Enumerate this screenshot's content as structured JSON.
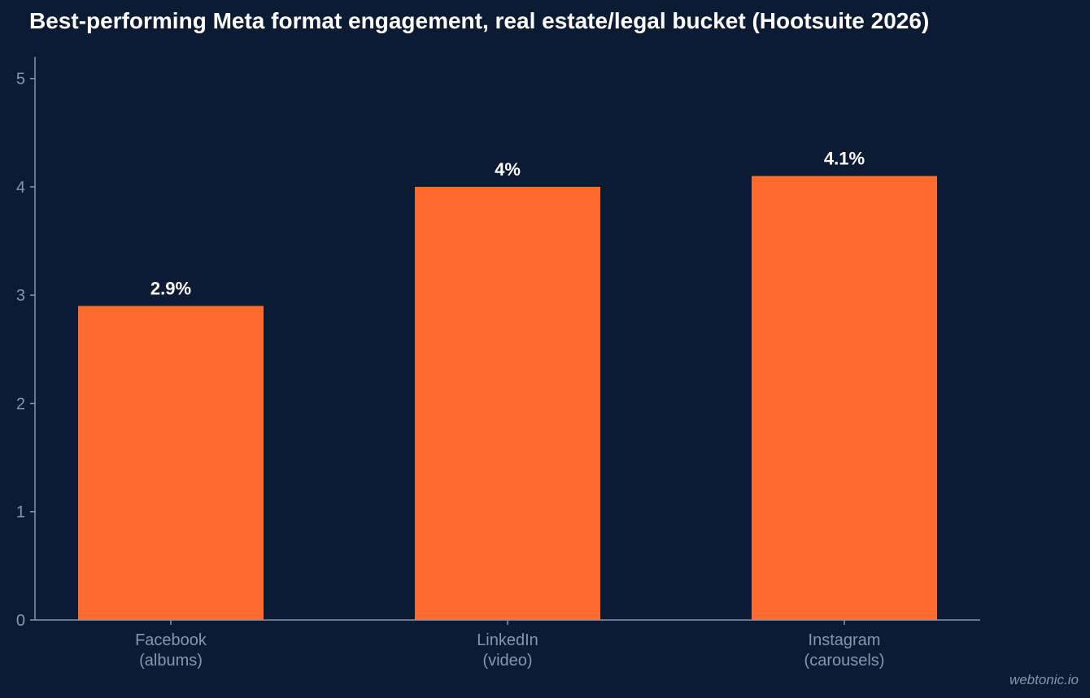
{
  "chart_data": {
    "type": "bar",
    "title": "Best-performing Meta format engagement, real estate/legal bucket (Hootsuite 2026)",
    "categories": [
      "Facebook\n(albums)",
      "LinkedIn\n(video)",
      "Instagram\n(carousels)"
    ],
    "values": [
      2.9,
      4.0,
      4.1
    ],
    "data_labels": [
      "2.9%",
      "4%",
      "4.1%"
    ],
    "yticks": [
      0,
      1,
      2,
      3,
      4,
      5
    ],
    "ylim": [
      0,
      5.2
    ],
    "xlabel": "",
    "ylabel": "",
    "grid": false,
    "legend": "none"
  },
  "colors": {
    "background": "#0b1b33",
    "bar": "#ff6b2f",
    "axis": "#8796ad",
    "tick_text": "#8796ad",
    "label_text": "#ffffff"
  },
  "watermark": "webtonic.io"
}
